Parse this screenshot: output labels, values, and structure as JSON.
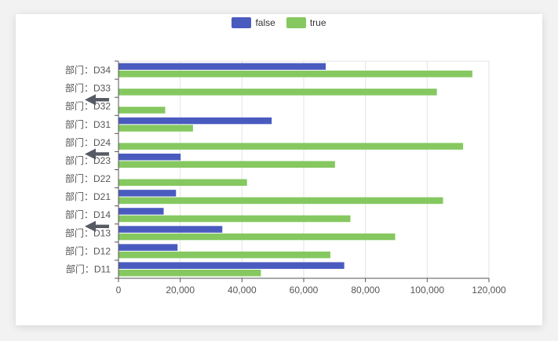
{
  "chart_data": {
    "type": "bar",
    "orientation": "horizontal",
    "categories": [
      "部门：D11",
      "部门：D12",
      "部门：D13",
      "部门：D14",
      "部门：D21",
      "部门：D22",
      "部门：D23",
      "部门：D24",
      "部门：D31",
      "部门：D32",
      "部门：D33",
      "部门：D34"
    ],
    "series": [
      {
        "name": "false",
        "color": "#4a5bbf",
        "values": [
          73000,
          19000,
          33500,
          14500,
          18500,
          0,
          20000,
          0,
          49500,
          0,
          0,
          67000
        ]
      },
      {
        "name": "true",
        "color": "#85c860",
        "values": [
          46000,
          68500,
          89500,
          75000,
          105000,
          41500,
          70000,
          111500,
          24000,
          15000,
          103000,
          114500
        ]
      }
    ],
    "xlim": [
      0,
      120000
    ],
    "xticks": [
      0,
      20000,
      40000,
      60000,
      80000,
      100000,
      120000
    ],
    "xtick_labels": [
      "0",
      "20,000",
      "40,000",
      "60,000",
      "80,000",
      "100,000",
      "120,000"
    ],
    "legend_position": "top-center",
    "grid": true,
    "annotations": [
      {
        "type": "arrow",
        "direction": "left",
        "near_category": "部门：D32"
      },
      {
        "type": "arrow",
        "direction": "left",
        "near_category": "部门：D23"
      },
      {
        "type": "arrow",
        "direction": "left",
        "near_category": "部门：D13"
      }
    ]
  }
}
